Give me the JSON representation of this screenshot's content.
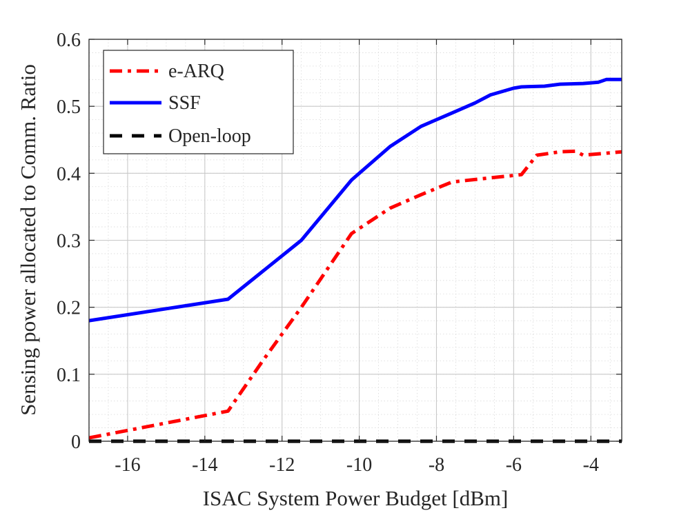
{
  "chart_data": {
    "type": "line",
    "title": "",
    "xlabel": "ISAC System Power Budget [dBm]",
    "ylabel": "Sensing power allocated to Comm. Ratio",
    "xlim": [
      -17,
      -3.2
    ],
    "ylim": [
      0,
      0.6
    ],
    "xticks": [
      -16,
      -14,
      -12,
      -10,
      -8,
      -6,
      -4
    ],
    "yticks": [
      0,
      0.1,
      0.2,
      0.3,
      0.4,
      0.5,
      0.6
    ],
    "xtick_labels": [
      "-16",
      "-14",
      "-12",
      "-10",
      "-8",
      "-6",
      "-4"
    ],
    "ytick_labels": [
      "0",
      "0.1",
      "0.2",
      "0.3",
      "0.4",
      "0.5",
      "0.6"
    ],
    "grid": true,
    "minor_grid": true,
    "legend_position": "top-left",
    "series": [
      {
        "name": "e-ARQ",
        "color": "#ff0000",
        "style": "dashdot",
        "x": [
          -17,
          -13.4,
          -12.5,
          -11.5,
          -10.2,
          -9.2,
          -8.4,
          -7.6,
          -6.8,
          -5.8,
          -5.4,
          -4.8,
          -4.4,
          -4.2,
          -3.6,
          -3.2
        ],
        "y": [
          0.005,
          0.045,
          0.12,
          0.2,
          0.31,
          0.348,
          0.368,
          0.387,
          0.392,
          0.398,
          0.427,
          0.432,
          0.433,
          0.427,
          0.43,
          0.432
        ]
      },
      {
        "name": "SSF",
        "color": "#0000ff",
        "style": "solid",
        "x": [
          -17,
          -13.4,
          -11.5,
          -10.2,
          -9.2,
          -8.4,
          -7.6,
          -7.0,
          -6.6,
          -6.0,
          -5.8,
          -5.2,
          -4.8,
          -4.2,
          -3.8,
          -3.6,
          -3.2
        ],
        "y": [
          0.18,
          0.212,
          0.3,
          0.39,
          0.44,
          0.47,
          0.49,
          0.505,
          0.517,
          0.527,
          0.529,
          0.53,
          0.533,
          0.534,
          0.536,
          0.54,
          0.54
        ]
      },
      {
        "name": "Open-loop",
        "color": "#000000",
        "style": "dashed",
        "x": [
          -17,
          -3.2
        ],
        "y": [
          0,
          0
        ]
      }
    ]
  }
}
